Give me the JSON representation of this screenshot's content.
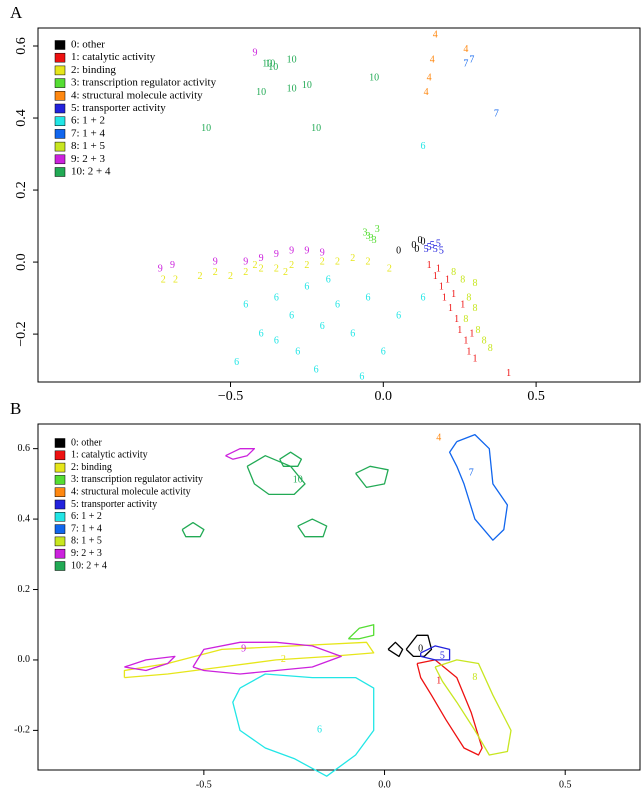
{
  "chart_data": [
    {
      "type": "scatter",
      "panel": "A",
      "legend": "top-left",
      "xlim": [
        -1.13,
        0.84
      ],
      "ylim": [
        -0.333,
        0.65
      ],
      "xticks": [
        {
          "value": -0.5,
          "label": "−0.5"
        },
        {
          "value": 0,
          "label": "0.0"
        },
        {
          "value": 0.5,
          "label": "0.5"
        }
      ],
      "yticks": [
        {
          "value": -0.2,
          "label": "−0.2"
        },
        {
          "value": 0,
          "label": "0.0"
        },
        {
          "value": 0.2,
          "label": "0.2"
        },
        {
          "value": 0.4,
          "label": "0.4"
        },
        {
          "value": 0.6,
          "label": "0.6"
        }
      ],
      "series": [
        {
          "name": "0: other",
          "color": "#000000",
          "marker": "0",
          "x": [
            0.05,
            0.1,
            0.12,
            0.13,
            0.11
          ],
          "y": [
            0.03,
            0.045,
            0.06,
            0.055,
            0.035
          ]
        },
        {
          "name": "1: catalytic activity",
          "color": "#ee1111",
          "marker": "1",
          "x": [
            0.15,
            0.17,
            0.19,
            0.2,
            0.22,
            0.24,
            0.25,
            0.27,
            0.28,
            0.3,
            0.41,
            0.18,
            0.21,
            0.23,
            0.26,
            0.29
          ],
          "y": [
            -0.01,
            -0.04,
            -0.07,
            -0.1,
            -0.13,
            -0.16,
            -0.19,
            -0.22,
            -0.25,
            -0.27,
            -0.31,
            -0.02,
            -0.05,
            -0.09,
            -0.12,
            -0.2
          ]
        },
        {
          "name": "2: binding",
          "color": "#e6e61a",
          "marker": "2",
          "x": [
            -0.72,
            -0.68,
            -0.6,
            -0.55,
            -0.5,
            -0.45,
            -0.4,
            -0.35,
            -0.3,
            -0.25,
            -0.2,
            -0.15,
            -0.1,
            -0.05,
            -0.42,
            -0.32,
            0.02
          ],
          "y": [
            -0.05,
            -0.05,
            -0.04,
            -0.03,
            -0.04,
            -0.03,
            -0.02,
            -0.02,
            -0.01,
            -0.01,
            0,
            0,
            0.01,
            0,
            -0.01,
            -0.03,
            -0.02
          ]
        },
        {
          "name": "3: transcription regulator activity",
          "color": "#55dd33",
          "marker": "3",
          "x": [
            -0.05,
            -0.03,
            -0.06,
            -0.02,
            -0.04
          ],
          "y": [
            0.07,
            0.06,
            0.08,
            0.09,
            0.065
          ]
        },
        {
          "name": "4: structural molecule activity",
          "color": "#ff8811",
          "marker": "4",
          "x": [
            0.17,
            0.27,
            0.16,
            0.15,
            0.14
          ],
          "y": [
            0.63,
            0.59,
            0.56,
            0.51,
            0.47
          ]
        },
        {
          "name": "5: transporter activity",
          "color": "#2222dd",
          "marker": "5",
          "x": [
            0.18,
            0.15,
            0.17,
            0.19,
            0.14,
            0.16
          ],
          "y": [
            0.05,
            0.04,
            0.035,
            0.03,
            0.035,
            0.045
          ]
        },
        {
          "name": "6: 1 + 2",
          "color": "#22e6e6",
          "marker": "6",
          "x": [
            -0.48,
            -0.45,
            -0.4,
            -0.35,
            -0.3,
            -0.28,
            -0.25,
            -0.22,
            -0.2,
            -0.15,
            -0.1,
            -0.07,
            -0.05,
            0,
            0.05,
            0.13,
            -0.35,
            -0.18,
            0.13
          ],
          "y": [
            -0.28,
            -0.12,
            -0.2,
            -0.1,
            -0.15,
            -0.25,
            -0.07,
            -0.3,
            -0.18,
            -0.12,
            -0.2,
            -0.32,
            -0.1,
            -0.25,
            -0.15,
            -0.1,
            -0.22,
            -0.05,
            0.32
          ]
        },
        {
          "name": "7: 1 + 4",
          "color": "#1166ee",
          "marker": "7",
          "x": [
            0.27,
            0.29,
            0.37
          ],
          "y": [
            0.55,
            0.56,
            0.41
          ]
        },
        {
          "name": "8: 1 + 5",
          "color": "#c8e620",
          "marker": "8",
          "x": [
            0.23,
            0.26,
            0.3,
            0.28,
            0.3,
            0.27,
            0.31,
            0.33,
            0.35
          ],
          "y": [
            -0.03,
            -0.05,
            -0.06,
            -0.1,
            -0.13,
            -0.16,
            -0.19,
            -0.22,
            -0.24
          ]
        },
        {
          "name": "9: 2 + 3",
          "color": "#cc22dd",
          "marker": "9",
          "x": [
            -0.73,
            -0.69,
            -0.55,
            -0.45,
            -0.4,
            -0.35,
            -0.3,
            -0.25,
            -0.2,
            -0.42
          ],
          "y": [
            -0.02,
            -0.01,
            0,
            0,
            0.01,
            0.02,
            0.03,
            0.03,
            0.025,
            0.58
          ]
        },
        {
          "name": "10: 2 + 4",
          "color": "#22aa55",
          "marker": "10",
          "x": [
            -0.38,
            -0.36,
            -0.3,
            -0.4,
            -0.3,
            -0.25,
            -0.03,
            -0.58,
            -0.22,
            -0.37
          ],
          "y": [
            0.55,
            0.54,
            0.56,
            0.47,
            0.48,
            0.49,
            0.51,
            0.37,
            0.37,
            0.55
          ]
        }
      ]
    },
    {
      "type": "contour",
      "panel": "B",
      "legend": "top-left",
      "xlim": [
        -0.959,
        0.707
      ],
      "ylim": [
        -0.3125,
        0.67
      ],
      "xticks": [
        {
          "value": -0.5,
          "label": "-0.5"
        },
        {
          "value": 0,
          "label": "0.0"
        },
        {
          "value": 0.5,
          "label": "0.5"
        }
      ],
      "yticks": [
        {
          "value": -0.2,
          "label": "-0.2"
        },
        {
          "value": 0,
          "label": "0.0"
        },
        {
          "value": 0.2,
          "label": "0.2"
        },
        {
          "value": 0.4,
          "label": "0.4"
        },
        {
          "value": 0.6,
          "label": "0.6"
        }
      ],
      "series": [
        {
          "name": "0: other",
          "color": "#000000",
          "label": "0",
          "label_x": 0.1,
          "label_y": 0.03,
          "x": [
            0.06,
            0.09,
            0.12,
            0.13,
            0.11,
            0.08,
            0.06,
            null,
            0.01,
            0.03,
            0.05,
            0.04,
            0.01
          ],
          "y": [
            0.03,
            0.07,
            0.07,
            0.03,
            0.01,
            0.01,
            0.03,
            null,
            0.03,
            0.05,
            0.03,
            0.01,
            0.03
          ]
        },
        {
          "name": "1: catalytic activity",
          "color": "#ee1111",
          "label": "1",
          "label_x": 0.15,
          "label_y": -0.06,
          "x": [
            0.09,
            0.14,
            0.2,
            0.24,
            0.27,
            0.26,
            0.22,
            0.17,
            0.13,
            0.1,
            0.09
          ],
          "y": [
            -0.01,
            0,
            -0.05,
            -0.15,
            -0.25,
            -0.27,
            -0.25,
            -0.17,
            -0.1,
            -0.05,
            -0.01
          ]
        },
        {
          "name": "2: binding",
          "color": "#e6e61a",
          "label": "2",
          "label_x": -0.28,
          "label_y": 0,
          "x": [
            -0.72,
            -0.6,
            -0.45,
            -0.3,
            -0.15,
            -0.03,
            -0.05,
            -0.25,
            -0.45,
            -0.6,
            -0.72,
            -0.72
          ],
          "y": [
            -0.05,
            -0.04,
            -0.02,
            0,
            0.01,
            0.02,
            0.05,
            0.04,
            0.03,
            -0.01,
            -0.03,
            -0.05
          ]
        },
        {
          "name": "3: transcription regulator activity",
          "color": "#55dd33",
          "x": [
            -0.1,
            -0.07,
            -0.03,
            -0.03,
            -0.07,
            -0.1
          ],
          "y": [
            0.06,
            0.09,
            0.1,
            0.07,
            0.06,
            0.06
          ]
        },
        {
          "name": "4: structural molecule activity",
          "color": "#ff8811",
          "label": "4",
          "label_x": 0.15,
          "label_y": 0.63,
          "x": [],
          "y": []
        },
        {
          "name": "5: transporter activity",
          "color": "#2222dd",
          "label": "5",
          "label_x": 0.16,
          "label_y": 0.01,
          "x": [
            0.1,
            0.14,
            0.18,
            0.18,
            0.14,
            0.1,
            0.1
          ],
          "y": [
            0.02,
            0.04,
            0.03,
            0,
            0,
            0.01,
            0.02
          ]
        },
        {
          "name": "6: 1 + 2",
          "color": "#22e6e6",
          "label": "6",
          "label_x": -0.18,
          "label_y": -0.2,
          "x": [
            -0.4,
            -0.33,
            -0.2,
            -0.08,
            -0.03,
            -0.03,
            -0.08,
            -0.16,
            -0.25,
            -0.33,
            -0.4,
            -0.42,
            -0.4
          ],
          "y": [
            -0.08,
            -0.04,
            -0.05,
            -0.05,
            -0.08,
            -0.2,
            -0.27,
            -0.33,
            -0.28,
            -0.25,
            -0.2,
            -0.12,
            -0.08
          ]
        },
        {
          "name": "7: 1 + 4",
          "color": "#1166ee",
          "label": "7",
          "label_x": 0.24,
          "label_y": 0.53,
          "x": [
            0.2,
            0.25,
            0.29,
            0.3,
            0.34,
            0.33,
            0.3,
            0.25,
            0.22,
            0.2,
            0.18,
            0.2
          ],
          "y": [
            0.62,
            0.64,
            0.6,
            0.5,
            0.44,
            0.37,
            0.34,
            0.4,
            0.5,
            0.55,
            0.59,
            0.62
          ]
        },
        {
          "name": "8: 1 + 5",
          "color": "#c8e620",
          "label": "8",
          "label_x": 0.25,
          "label_y": -0.05,
          "x": [
            0.14,
            0.2,
            0.26,
            0.3,
            0.35,
            0.34,
            0.29,
            0.25,
            0.2,
            0.16,
            0.14
          ],
          "y": [
            -0.02,
            0,
            -0.01,
            -0.1,
            -0.2,
            -0.26,
            -0.27,
            -0.2,
            -0.12,
            -0.06,
            -0.02
          ]
        },
        {
          "name": "9: 2 + 3",
          "color": "#cc22dd",
          "label": "9",
          "label_x": -0.39,
          "label_y": 0.03,
          "x": [
            -0.53,
            -0.5,
            -0.4,
            -0.3,
            -0.2,
            -0.12,
            -0.2,
            -0.3,
            -0.4,
            -0.5,
            -0.53,
            null,
            -0.72,
            -0.66,
            -0.58,
            -0.6,
            -0.66,
            -0.72,
            null,
            -0.44,
            -0.4,
            -0.36,
            -0.38,
            -0.42,
            -0.44
          ],
          "y": [
            -0.02,
            0.03,
            0.05,
            0.05,
            0.04,
            0.01,
            -0.02,
            -0.03,
            -0.04,
            -0.03,
            -0.02,
            null,
            -0.02,
            0,
            0.01,
            -0.01,
            -0.03,
            -0.02,
            null,
            0.58,
            0.6,
            0.6,
            0.58,
            0.57,
            0.58
          ]
        },
        {
          "name": "10: 2 + 4",
          "color": "#22aa55",
          "label": "10",
          "label_x": -0.24,
          "label_y": 0.51,
          "x": [
            -0.38,
            -0.33,
            -0.26,
            -0.22,
            -0.25,
            -0.32,
            -0.36,
            -0.38,
            null,
            -0.29,
            -0.26,
            -0.23,
            -0.24,
            -0.28,
            -0.29,
            null,
            -0.08,
            -0.04,
            0.01,
            0,
            -0.05,
            -0.08,
            null,
            -0.56,
            -0.53,
            -0.5,
            -0.51,
            -0.55,
            -0.56,
            null,
            -0.24,
            -0.2,
            -0.16,
            -0.17,
            -0.22,
            -0.24
          ],
          "y": [
            0.55,
            0.58,
            0.55,
            0.5,
            0.47,
            0.47,
            0.5,
            0.55,
            null,
            0.57,
            0.59,
            0.57,
            0.55,
            0.55,
            0.57,
            null,
            0.53,
            0.55,
            0.54,
            0.5,
            0.49,
            0.53,
            null,
            0.37,
            0.39,
            0.37,
            0.35,
            0.35,
            0.37,
            null,
            0.38,
            0.4,
            0.38,
            0.35,
            0.35,
            0.38
          ]
        }
      ]
    }
  ]
}
